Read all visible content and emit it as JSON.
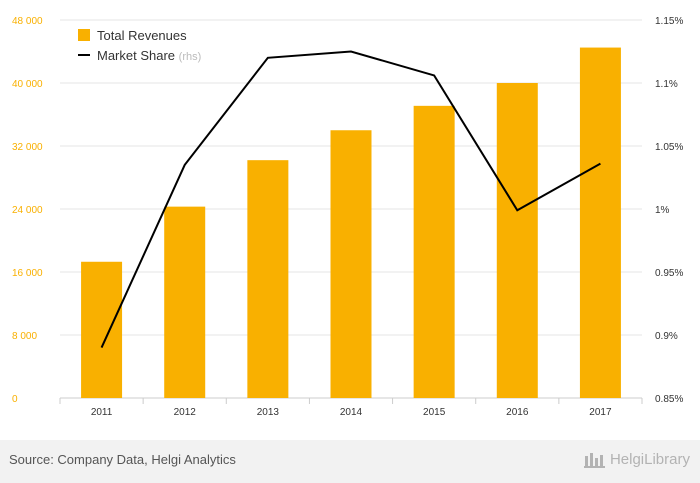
{
  "chart_data": {
    "type": "bar",
    "categories": [
      "2011",
      "2012",
      "2013",
      "2014",
      "2015",
      "2016",
      "2017"
    ],
    "series": [
      {
        "name": "Total Revenues",
        "kind": "bar",
        "axis": "left",
        "color": "#f9b000",
        "values": [
          17300,
          24300,
          30200,
          34000,
          37100,
          40000,
          44500
        ]
      },
      {
        "name": "Market Share",
        "name_suffix": "(rhs)",
        "kind": "line",
        "axis": "right",
        "color": "#000000",
        "values": [
          0.89,
          1.035,
          1.12,
          1.125,
          1.106,
          0.999,
          1.036
        ]
      }
    ],
    "left_axis": {
      "ylim": [
        0,
        48000
      ],
      "ticks": [
        0,
        8000,
        16000,
        24000,
        32000,
        40000,
        48000
      ],
      "tick_labels": [
        "0",
        "8 000",
        "16 000",
        "24 000",
        "32 000",
        "40 000",
        "48 000"
      ],
      "label_color": "#f9b000"
    },
    "right_axis": {
      "ylim": [
        0.85,
        1.15
      ],
      "ticks": [
        0.85,
        0.9,
        0.95,
        1.0,
        1.05,
        1.1,
        1.15
      ],
      "tick_labels": [
        "0.85%",
        "0.9%",
        "0.95%",
        "1%",
        "1.05%",
        "1.1%",
        "1.15%"
      ]
    },
    "grid": true,
    "legend_position": "top-left"
  },
  "footer": {
    "source": "Source: Company Data, Helgi Analytics",
    "brand": "HelgiLibrary"
  }
}
